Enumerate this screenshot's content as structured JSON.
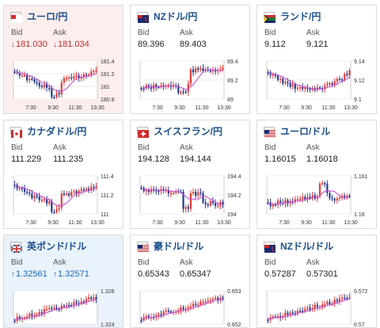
{
  "tiles": [
    {
      "name": "ユーロ/円",
      "flag": "eu",
      "bid": "181.030",
      "ask": "181.034",
      "trend": "down",
      "bg": "red",
      "ylabels": [
        "181.4",
        "181.2",
        "181",
        "180.8"
      ],
      "xlabels": [
        "7:30",
        "9:30",
        "11:30",
        "13:30"
      ],
      "shape": "A"
    },
    {
      "name": "NZドル/円",
      "flag": "nz",
      "bid": "89.396",
      "ask": "89.403",
      "trend": "",
      "bg": "",
      "ylabels": [
        "89.4",
        "89.2",
        "89"
      ],
      "xlabels": [
        "7:30",
        "9:30",
        "11:30",
        "13:30"
      ],
      "shape": "B"
    },
    {
      "name": "ランド/円",
      "flag": "za",
      "bid": "9.112",
      "ask": "9.121",
      "trend": "",
      "bg": "",
      "ylabels": [
        "9.14",
        "9.12",
        "9.1"
      ],
      "xlabels": [
        "7:30",
        "9:30",
        "11:30",
        "13:30"
      ],
      "shape": "C"
    },
    {
      "name": "カナダドル/円",
      "flag": "ca",
      "bid": "111.229",
      "ask": "111.235",
      "trend": "",
      "bg": "",
      "ylabels": [
        "111.4",
        "111.2",
        "111"
      ],
      "xlabels": [
        "7:30",
        "9:30",
        "11:30",
        "13:30"
      ],
      "shape": "A"
    },
    {
      "name": "スイスフラン/円",
      "flag": "ch",
      "bid": "194.128",
      "ask": "194.144",
      "trend": "",
      "bg": "",
      "ylabels": [
        "194.4",
        "194.2",
        "194"
      ],
      "xlabels": [
        "7:30",
        "9:30",
        "11:30",
        "13:30"
      ],
      "shape": "D"
    },
    {
      "name": "ユーロ/ドル",
      "flag": "us",
      "bid": "1.16015",
      "ask": "1.16018",
      "trend": "",
      "bg": "",
      "ylabels": [
        "1.161",
        "1.16"
      ],
      "xlabels": [
        "7:30",
        "9:30",
        "11:30",
        "13:30"
      ],
      "shape": "E"
    },
    {
      "name": "英ポンド/ドル",
      "flag": "gb",
      "bid": "1.32561",
      "ask": "1.32571",
      "trend": "up",
      "bg": "blue",
      "ylabels": [
        "1.326",
        "1.324"
      ],
      "xlabels": [],
      "shape": "F"
    },
    {
      "name": "豪ドル/ドル",
      "flag": "us",
      "bid": "0.65343",
      "ask": "0.65347",
      "trend": "",
      "bg": "",
      "ylabels": [
        "0.653",
        "0.652"
      ],
      "xlabels": [],
      "shape": "F"
    },
    {
      "name": "NZドル/ドル",
      "flag": "nz",
      "bid": "0.57287",
      "ask": "0.57301",
      "trend": "",
      "bg": "",
      "ylabels": [
        "0.572",
        "0.57"
      ],
      "xlabels": [],
      "shape": "F"
    }
  ],
  "labels": {
    "bid": "Bid",
    "ask": "Ask"
  },
  "arrows": {
    "up": "↑",
    "down": "↓"
  },
  "colors": {
    "title": "#1a4f8c",
    "up_candle": "#e53935",
    "down_candle": "#1e3a8a",
    "ma_line": "#c94fd6",
    "down_text": "#c62828",
    "up_text": "#1565c0"
  }
}
